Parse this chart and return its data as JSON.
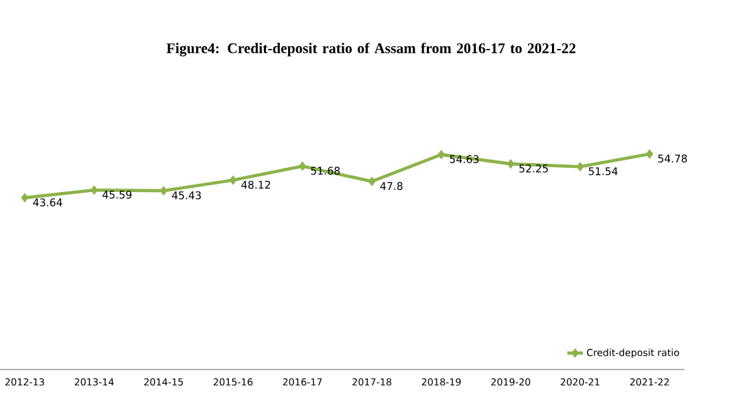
{
  "chart_data": {
    "type": "line",
    "title": "Figure4: Credit-deposit ratio of Assam from 2016-17 to 2021-22",
    "categories": [
      "2012-13",
      "2013-14",
      "2014-15",
      "2015-16",
      "2016-17",
      "2017-18",
      "2018-19",
      "2019-20",
      "2020-21",
      "2021-22"
    ],
    "series": [
      {
        "name": "Credit-deposit ratio",
        "color": "#8db34a",
        "values": [
          43.64,
          45.59,
          45.43,
          48.12,
          51.68,
          47.8,
          54.63,
          52.25,
          51.54,
          54.78
        ]
      }
    ],
    "tick_labels": "x",
    "data_labels": true,
    "marker": "diamond",
    "line_style": "solid",
    "legend": "bottom right"
  }
}
